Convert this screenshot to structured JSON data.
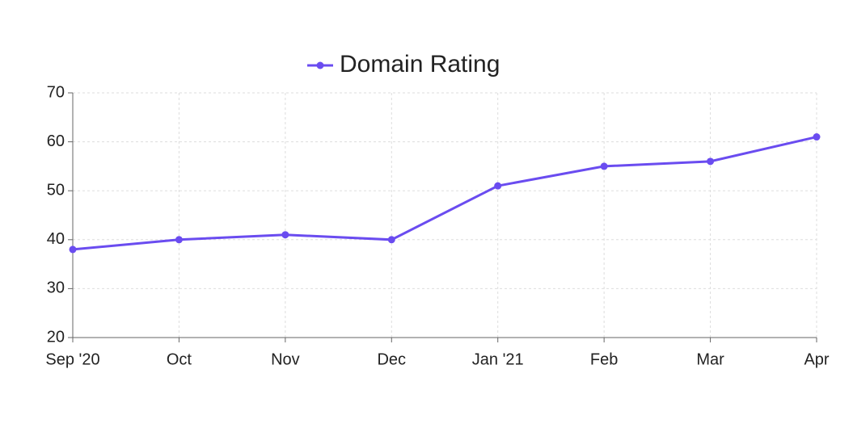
{
  "chart_data": {
    "type": "line",
    "categories": [
      "Sep '20",
      "Oct",
      "Nov",
      "Dec",
      "Jan '21",
      "Feb",
      "Mar",
      "Apr"
    ],
    "series": [
      {
        "name": "Domain Rating",
        "color": "#6a4cf0",
        "values": [
          38,
          40,
          41,
          40,
          51,
          55,
          56,
          61
        ]
      }
    ],
    "ylim": [
      20,
      70
    ],
    "yticks": [
      20,
      30,
      40,
      50,
      60,
      70
    ],
    "grid": true,
    "legend": "top"
  }
}
